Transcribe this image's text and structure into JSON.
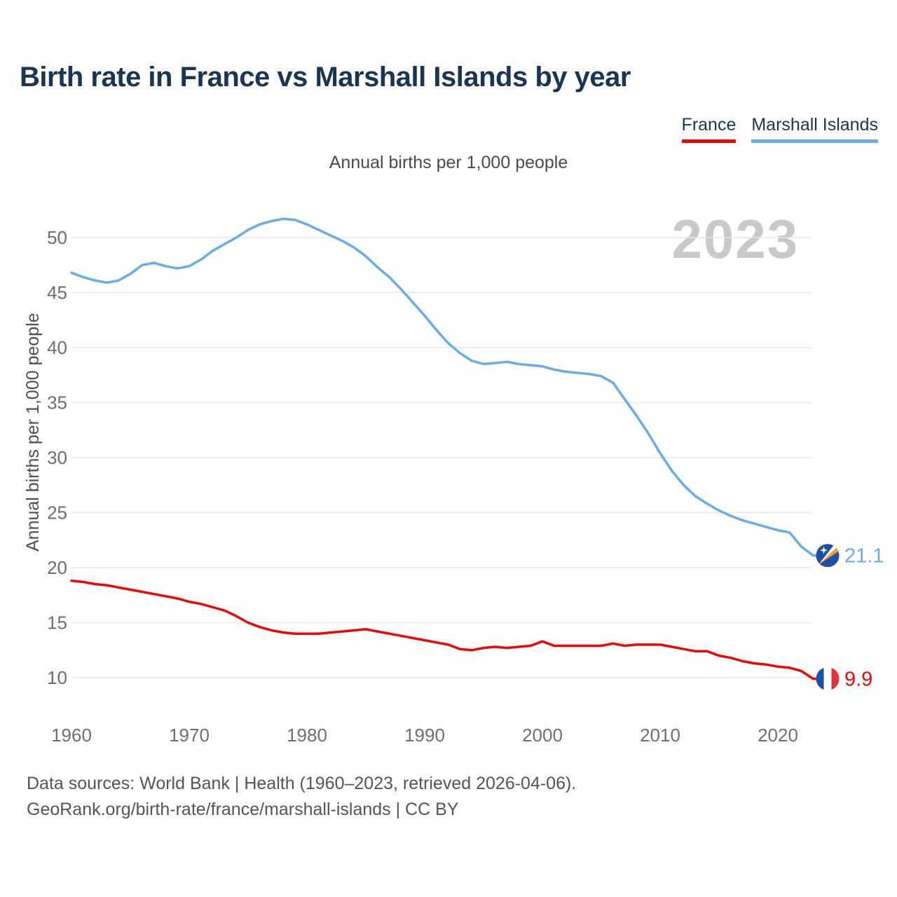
{
  "title": "Birth rate in France vs Marshall Islands by year",
  "subtitle": "Annual births per 1,000 people",
  "y_axis_label": "Annual births per 1,000 people",
  "watermark": "2023",
  "legend": {
    "items": [
      {
        "label": "France",
        "color": "#EE0505"
      },
      {
        "label": "Marshall Islands",
        "color": "#6AACE5"
      }
    ]
  },
  "footer": {
    "line1": "Data sources: World Bank | Health (1960–2023, retrieved 2026-04-06).",
    "line2": "GeoRank.org/birth-rate/france/marshall-islands | CC BY"
  },
  "colors": {
    "title": "#1A3553",
    "grid": "#E7E7E7",
    "tick": "#6E6E6E",
    "watermark": "#C9C9C9",
    "france_line": "#EE0505",
    "marshall_line": "#6AACE5",
    "france_flag_blue": "#1F4FA8",
    "france_flag_red": "#E2303E",
    "marshall_flag_blue": "#1D4FA4",
    "marshall_flag_orange": "#F79A1F"
  },
  "chart_data": {
    "type": "line",
    "title": "Birth rate in France vs Marshall Islands by year",
    "subtitle": "Annual births per 1,000 people",
    "ylabel": "Annual births per 1,000 people",
    "xlabel": "",
    "grid": "horizontal-only",
    "legend_position": "top-right",
    "year_watermark": "2023",
    "x": [
      1960,
      1961,
      1962,
      1963,
      1964,
      1965,
      1966,
      1967,
      1968,
      1969,
      1970,
      1971,
      1972,
      1973,
      1974,
      1975,
      1976,
      1977,
      1978,
      1979,
      1980,
      1981,
      1982,
      1983,
      1984,
      1985,
      1986,
      1987,
      1988,
      1989,
      1990,
      1991,
      1992,
      1993,
      1994,
      1995,
      1996,
      1997,
      1998,
      1999,
      2000,
      2001,
      2002,
      2003,
      2004,
      2005,
      2006,
      2007,
      2008,
      2009,
      2010,
      2011,
      2012,
      2013,
      2014,
      2015,
      2016,
      2017,
      2018,
      2019,
      2020,
      2021,
      2022,
      2023
    ],
    "x_ticks": [
      1960,
      1970,
      1980,
      1990,
      2000,
      2010,
      2020
    ],
    "y_ticks": [
      10,
      15,
      20,
      25,
      30,
      35,
      40,
      45,
      50
    ],
    "ylim": [
      8.5,
      53
    ],
    "series": [
      {
        "name": "France",
        "color": "#EE0505",
        "flag": "france",
        "end_label": "9.9",
        "values": [
          18.8,
          18.7,
          18.5,
          18.4,
          18.2,
          18.0,
          17.8,
          17.6,
          17.4,
          17.2,
          16.9,
          16.7,
          16.4,
          16.1,
          15.6,
          15.0,
          14.6,
          14.3,
          14.1,
          14.0,
          14.0,
          14.0,
          14.1,
          14.2,
          14.3,
          14.4,
          14.2,
          14.0,
          13.8,
          13.6,
          13.4,
          13.2,
          13.0,
          12.6,
          12.5,
          12.7,
          12.8,
          12.7,
          12.8,
          12.9,
          13.3,
          12.9,
          12.9,
          12.9,
          12.9,
          12.9,
          13.1,
          12.9,
          13.0,
          13.0,
          13.0,
          12.8,
          12.6,
          12.4,
          12.4,
          12.0,
          11.8,
          11.5,
          11.3,
          11.2,
          11.0,
          10.9,
          10.6,
          9.9
        ]
      },
      {
        "name": "Marshall Islands",
        "color": "#6AACE5",
        "flag": "marshall-islands",
        "end_label": "21.1",
        "values": [
          46.8,
          46.4,
          46.1,
          45.9,
          46.1,
          46.7,
          47.5,
          47.7,
          47.4,
          47.2,
          47.4,
          48.0,
          48.8,
          49.4,
          50.0,
          50.7,
          51.2,
          51.5,
          51.7,
          51.6,
          51.2,
          50.7,
          50.2,
          49.7,
          49.1,
          48.3,
          47.3,
          46.4,
          45.3,
          44.1,
          42.9,
          41.6,
          40.4,
          39.5,
          38.8,
          38.5,
          38.6,
          38.7,
          38.5,
          38.4,
          38.3,
          38.0,
          37.8,
          37.7,
          37.6,
          37.4,
          36.8,
          35.3,
          33.8,
          32.2,
          30.4,
          28.8,
          27.5,
          26.5,
          25.8,
          25.2,
          24.7,
          24.3,
          24.0,
          23.7,
          23.4,
          23.2,
          21.9,
          21.1
        ]
      }
    ]
  }
}
